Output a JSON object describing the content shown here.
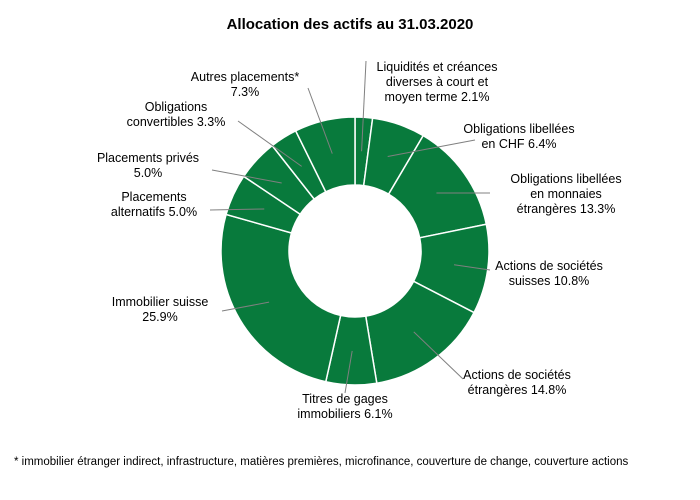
{
  "chart_data": {
    "type": "pie",
    "variant": "donut",
    "title": "Allocation des actifs au 31.03.2020",
    "unit": "%",
    "slice_color": "#087a3c",
    "slices": [
      {
        "label_lines": [
          "Liquidités et créances",
          "diverses à court et",
          "moyen terme 2.1%"
        ],
        "name": "Liquidités et créances diverses à court et moyen terme",
        "value": 2.1
      },
      {
        "label_lines": [
          "Obligations libellées",
          "en CHF 6.4%"
        ],
        "name": "Obligations libellées en CHF",
        "value": 6.4
      },
      {
        "label_lines": [
          "Obligations libellées",
          "en monnaies",
          "étrangères 13.3%"
        ],
        "name": "Obligations libellées en monnaies étrangères",
        "value": 13.3
      },
      {
        "label_lines": [
          "Actions de sociétés",
          "suisses 10.8%"
        ],
        "name": "Actions de sociétés suisses",
        "value": 10.8
      },
      {
        "label_lines": [
          "Actions de sociétés",
          "étrangères 14.8%"
        ],
        "name": "Actions de sociétés étrangères",
        "value": 14.8
      },
      {
        "label_lines": [
          "Titres de gages",
          "immobiliers 6.1%"
        ],
        "name": "Titres de gages immobiliers",
        "value": 6.1
      },
      {
        "label_lines": [
          "Immobilier suisse",
          "25.9%"
        ],
        "name": "Immobilier suisse",
        "value": 25.9
      },
      {
        "label_lines": [
          "Placements",
          "alternatifs 5.0%"
        ],
        "name": "Placements alternatifs",
        "value": 5.0
      },
      {
        "label_lines": [
          "Placements privés",
          "5.0%"
        ],
        "name": "Placements privés",
        "value": 5.0
      },
      {
        "label_lines": [
          "Obligations",
          "convertibles 3.3%"
        ],
        "name": "Obligations convertibles",
        "value": 3.3
      },
      {
        "label_lines": [
          "Autres placements*",
          "7.3%"
        ],
        "name": "Autres placements",
        "value": 7.3
      }
    ],
    "footnote": "* immobilier étranger indirect, infrastructure, matières premières, microfinance, couverture de change, couverture actions"
  }
}
